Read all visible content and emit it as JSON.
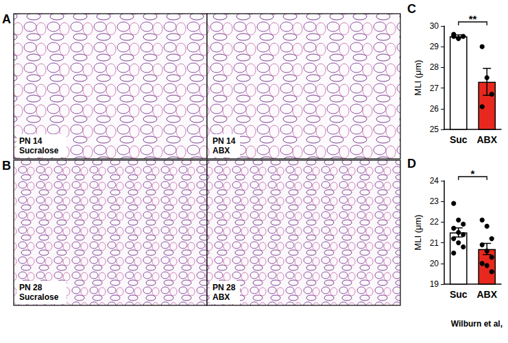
{
  "chart_data": [
    {
      "type": "bar",
      "panel": "C",
      "y_label": "MLI (μm)",
      "categories": [
        "Suc",
        "ABX"
      ],
      "values": [
        29.5,
        27.3
      ],
      "errors": [
        0.07,
        0.65
      ],
      "points": [
        [
          29.6,
          29.4,
          29.5,
          29.5,
          29.4
        ],
        [
          29.0,
          27.5,
          26.7,
          26.1
        ]
      ],
      "colors": [
        "#ffffff",
        "#e8281e"
      ],
      "significance": "**",
      "ylim": [
        25,
        30
      ],
      "yticks": [
        25,
        26,
        27,
        28,
        29,
        30
      ],
      "grid": false,
      "marker": "circle"
    },
    {
      "type": "bar",
      "panel": "D",
      "y_label": "MLI (μm)",
      "categories": [
        "Suc",
        "ABX"
      ],
      "values": [
        21.5,
        20.7
      ],
      "errors": [
        0.22,
        0.27
      ],
      "points": [
        [
          22.9,
          22.1,
          21.9,
          21.7,
          21.5,
          21.4,
          21.2,
          21.0,
          20.8,
          20.5
        ],
        [
          22.1,
          21.8,
          21.2,
          20.9,
          20.6,
          20.3,
          20.0,
          19.9,
          19.6
        ]
      ],
      "colors": [
        "#ffffff",
        "#e8281e"
      ],
      "significance": "*",
      "ylim": [
        19,
        24
      ],
      "yticks": [
        19,
        20,
        21,
        22,
        23,
        24
      ],
      "grid": false,
      "marker": "circle"
    }
  ],
  "micrographs": [
    {
      "panel": "A",
      "labels": [
        "PN 14 Sucralose",
        "PN 14 ABX"
      ]
    },
    {
      "panel": "B",
      "labels": [
        "PN 28 Sucralose",
        "PN 28 ABX"
      ]
    }
  ],
  "credit": "Wilburn et al,"
}
